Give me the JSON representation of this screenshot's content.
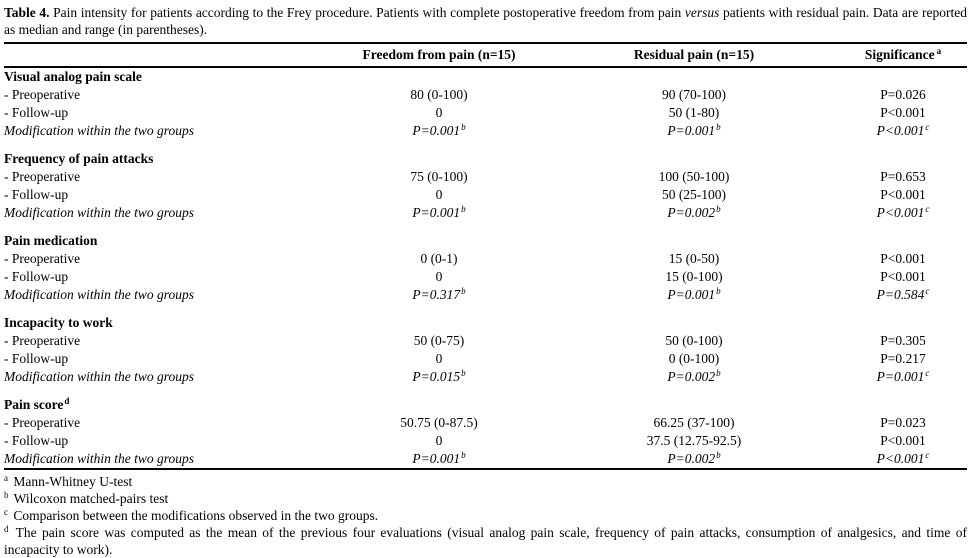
{
  "caption": {
    "label": "Table 4.",
    "before_versus": " Pain intensity for patients according to the Frey procedure. Patients with complete postoperative freedom from pain ",
    "versus": "versus",
    "after_versus": " patients with residual pain. Data are reported as median and range (in parentheses)."
  },
  "table": {
    "columns": [
      "",
      "Freedom from pain (n=15)",
      "Residual pain (n=15)",
      "Significance"
    ],
    "significance_sup": "a",
    "sections": [
      {
        "title": "Visual analog pain scale",
        "title_sup": "",
        "rows": [
          {
            "label": "- Preoperative",
            "italic": false,
            "cells": [
              {
                "v": "80 (0-100)",
                "s": ""
              },
              {
                "v": "90 (70-100)",
                "s": ""
              },
              {
                "v": "P=0.026",
                "s": ""
              }
            ]
          },
          {
            "label": "- Follow-up",
            "italic": false,
            "cells": [
              {
                "v": "0",
                "s": ""
              },
              {
                "v": "50 (1-80)",
                "s": ""
              },
              {
                "v": "P<0.001",
                "s": ""
              }
            ]
          },
          {
            "label": "Modification within the two groups",
            "italic": true,
            "cells": [
              {
                "v": "P=0.001",
                "s": "b"
              },
              {
                "v": "P=0.001",
                "s": "b"
              },
              {
                "v": "P<0.001",
                "s": "c"
              }
            ]
          }
        ]
      },
      {
        "title": "Frequency of pain attacks",
        "title_sup": "",
        "rows": [
          {
            "label": "- Preoperative",
            "italic": false,
            "cells": [
              {
                "v": "75 (0-100)",
                "s": ""
              },
              {
                "v": "100 (50-100)",
                "s": ""
              },
              {
                "v": "P=0.653",
                "s": ""
              }
            ]
          },
          {
            "label": "- Follow-up",
            "italic": false,
            "cells": [
              {
                "v": "0",
                "s": ""
              },
              {
                "v": "50 (25-100)",
                "s": ""
              },
              {
                "v": "P<0.001",
                "s": ""
              }
            ]
          },
          {
            "label": "Modification within the two groups",
            "italic": true,
            "cells": [
              {
                "v": "P=0.001",
                "s": "b"
              },
              {
                "v": "P=0.002",
                "s": "b"
              },
              {
                "v": "P<0.001",
                "s": "c"
              }
            ]
          }
        ]
      },
      {
        "title": "Pain medication",
        "title_sup": "",
        "rows": [
          {
            "label": "- Preoperative",
            "italic": false,
            "cells": [
              {
                "v": "0 (0-1)",
                "s": ""
              },
              {
                "v": "15 (0-50)",
                "s": ""
              },
              {
                "v": "P<0.001",
                "s": ""
              }
            ]
          },
          {
            "label": "- Follow-up",
            "italic": false,
            "cells": [
              {
                "v": "0",
                "s": ""
              },
              {
                "v": "15 (0-100)",
                "s": ""
              },
              {
                "v": "P<0.001",
                "s": ""
              }
            ]
          },
          {
            "label": "Modification within the two groups",
            "italic": true,
            "cells": [
              {
                "v": "P=0.317",
                "s": "b"
              },
              {
                "v": "P=0.001",
                "s": "b"
              },
              {
                "v": "P=0.584",
                "s": "c"
              }
            ]
          }
        ]
      },
      {
        "title": "Incapacity to work",
        "title_sup": "",
        "rows": [
          {
            "label": "- Preoperative",
            "italic": false,
            "cells": [
              {
                "v": "50 (0-75)",
                "s": ""
              },
              {
                "v": "50 (0-100)",
                "s": ""
              },
              {
                "v": "P=0.305",
                "s": ""
              }
            ]
          },
          {
            "label": "- Follow-up",
            "italic": false,
            "cells": [
              {
                "v": "0",
                "s": ""
              },
              {
                "v": "0 (0-100)",
                "s": ""
              },
              {
                "v": "P=0.217",
                "s": ""
              }
            ]
          },
          {
            "label": "Modification within the two groups",
            "italic": true,
            "cells": [
              {
                "v": "P=0.015",
                "s": "b"
              },
              {
                "v": "P=0.002",
                "s": "b"
              },
              {
                "v": "P=0.001",
                "s": "c"
              }
            ]
          }
        ]
      },
      {
        "title": "Pain score",
        "title_sup": "d",
        "rows": [
          {
            "label": "- Preoperative",
            "italic": false,
            "cells": [
              {
                "v": "50.75 (0-87.5)",
                "s": ""
              },
              {
                "v": "66.25 (37-100)",
                "s": ""
              },
              {
                "v": "P=0.023",
                "s": ""
              }
            ]
          },
          {
            "label": "- Follow-up",
            "italic": false,
            "cells": [
              {
                "v": "0",
                "s": ""
              },
              {
                "v": "37.5 (12.75-92.5)",
                "s": ""
              },
              {
                "v": "P<0.001",
                "s": ""
              }
            ]
          },
          {
            "label": "Modification within the two groups",
            "italic": true,
            "cells": [
              {
                "v": "P=0.001",
                "s": "b"
              },
              {
                "v": "P=0.002",
                "s": "b"
              },
              {
                "v": "P<0.001",
                "s": "c"
              }
            ]
          }
        ]
      }
    ]
  },
  "footnotes": [
    {
      "sup": "a",
      "text": "Mann-Whitney U-test",
      "justify": false
    },
    {
      "sup": "b",
      "text": "Wilcoxon matched-pairs test",
      "justify": false
    },
    {
      "sup": "c",
      "text": "Comparison between the modifications observed in the two groups.",
      "justify": false
    },
    {
      "sup": "d",
      "text": "The pain score was computed as the mean of the previous four evaluations (visual analog pain scale, frequency of pain attacks, consumption of analgesics, and time of incapacity to work).",
      "justify": true
    }
  ]
}
